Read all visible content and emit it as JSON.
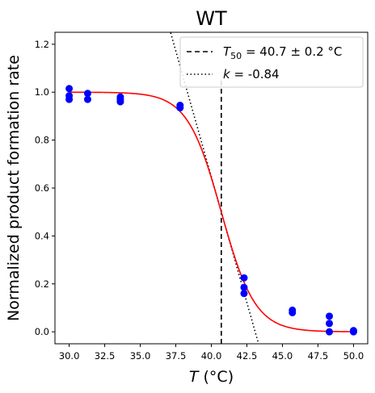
{
  "chart_data": {
    "type": "scatter",
    "title": "WT",
    "xlabel": {
      "var": "T",
      "unit": " (°C)"
    },
    "ylabel": "Normalized product formation rate",
    "xlim": [
      29.0,
      51.0
    ],
    "ylim": [
      -0.05,
      1.25
    ],
    "xticks": [
      "30.0",
      "32.5",
      "35.0",
      "37.5",
      "40.0",
      "42.5",
      "45.0",
      "47.5",
      "50.0"
    ],
    "xtick_values": [
      30.0,
      32.5,
      35.0,
      37.5,
      40.0,
      42.5,
      45.0,
      47.5,
      50.0
    ],
    "yticks": [
      "0.0",
      "0.2",
      "0.4",
      "0.6",
      "0.8",
      "1.0",
      "1.2"
    ],
    "ytick_values": [
      0.0,
      0.2,
      0.4,
      0.6,
      0.8,
      1.0,
      1.2
    ],
    "grid": false,
    "legend_position": "top-right",
    "points": {
      "color": "#0000ff",
      "x": [
        30.0,
        30.0,
        30.0,
        31.3,
        31.3,
        33.6,
        33.6,
        33.6,
        37.8,
        37.8,
        42.3,
        42.3,
        42.3,
        45.7,
        45.7,
        48.3,
        48.3,
        48.3,
        50.0,
        50.0
      ],
      "y": [
        1.015,
        0.985,
        0.97,
        0.995,
        0.97,
        0.98,
        0.97,
        0.96,
        0.945,
        0.935,
        0.225,
        0.185,
        0.16,
        0.09,
        0.08,
        0.065,
        0.035,
        0.0,
        0.0,
        0.005
      ]
    },
    "fit_curve": {
      "color": "#ff0000",
      "model": "logistic",
      "T50": 40.7,
      "k": -0.84,
      "x_range": [
        30.0,
        50.0
      ]
    },
    "t50_line": {
      "x": 40.7,
      "y_range": [
        -0.05,
        1.05
      ],
      "style": "dashed",
      "color": "#000000"
    },
    "slope_line": {
      "x_at_half": 40.7,
      "y_at_half": 0.5,
      "slope_per_unit": -0.21,
      "style": "dotted",
      "color": "#000000"
    },
    "legend": [
      {
        "style": "dashed",
        "sub": "50",
        "main": "T",
        "rest": " = 40.7 ± 0.2 °C"
      },
      {
        "style": "dotted",
        "main": "k",
        "rest": " = -0.84"
      }
    ]
  }
}
